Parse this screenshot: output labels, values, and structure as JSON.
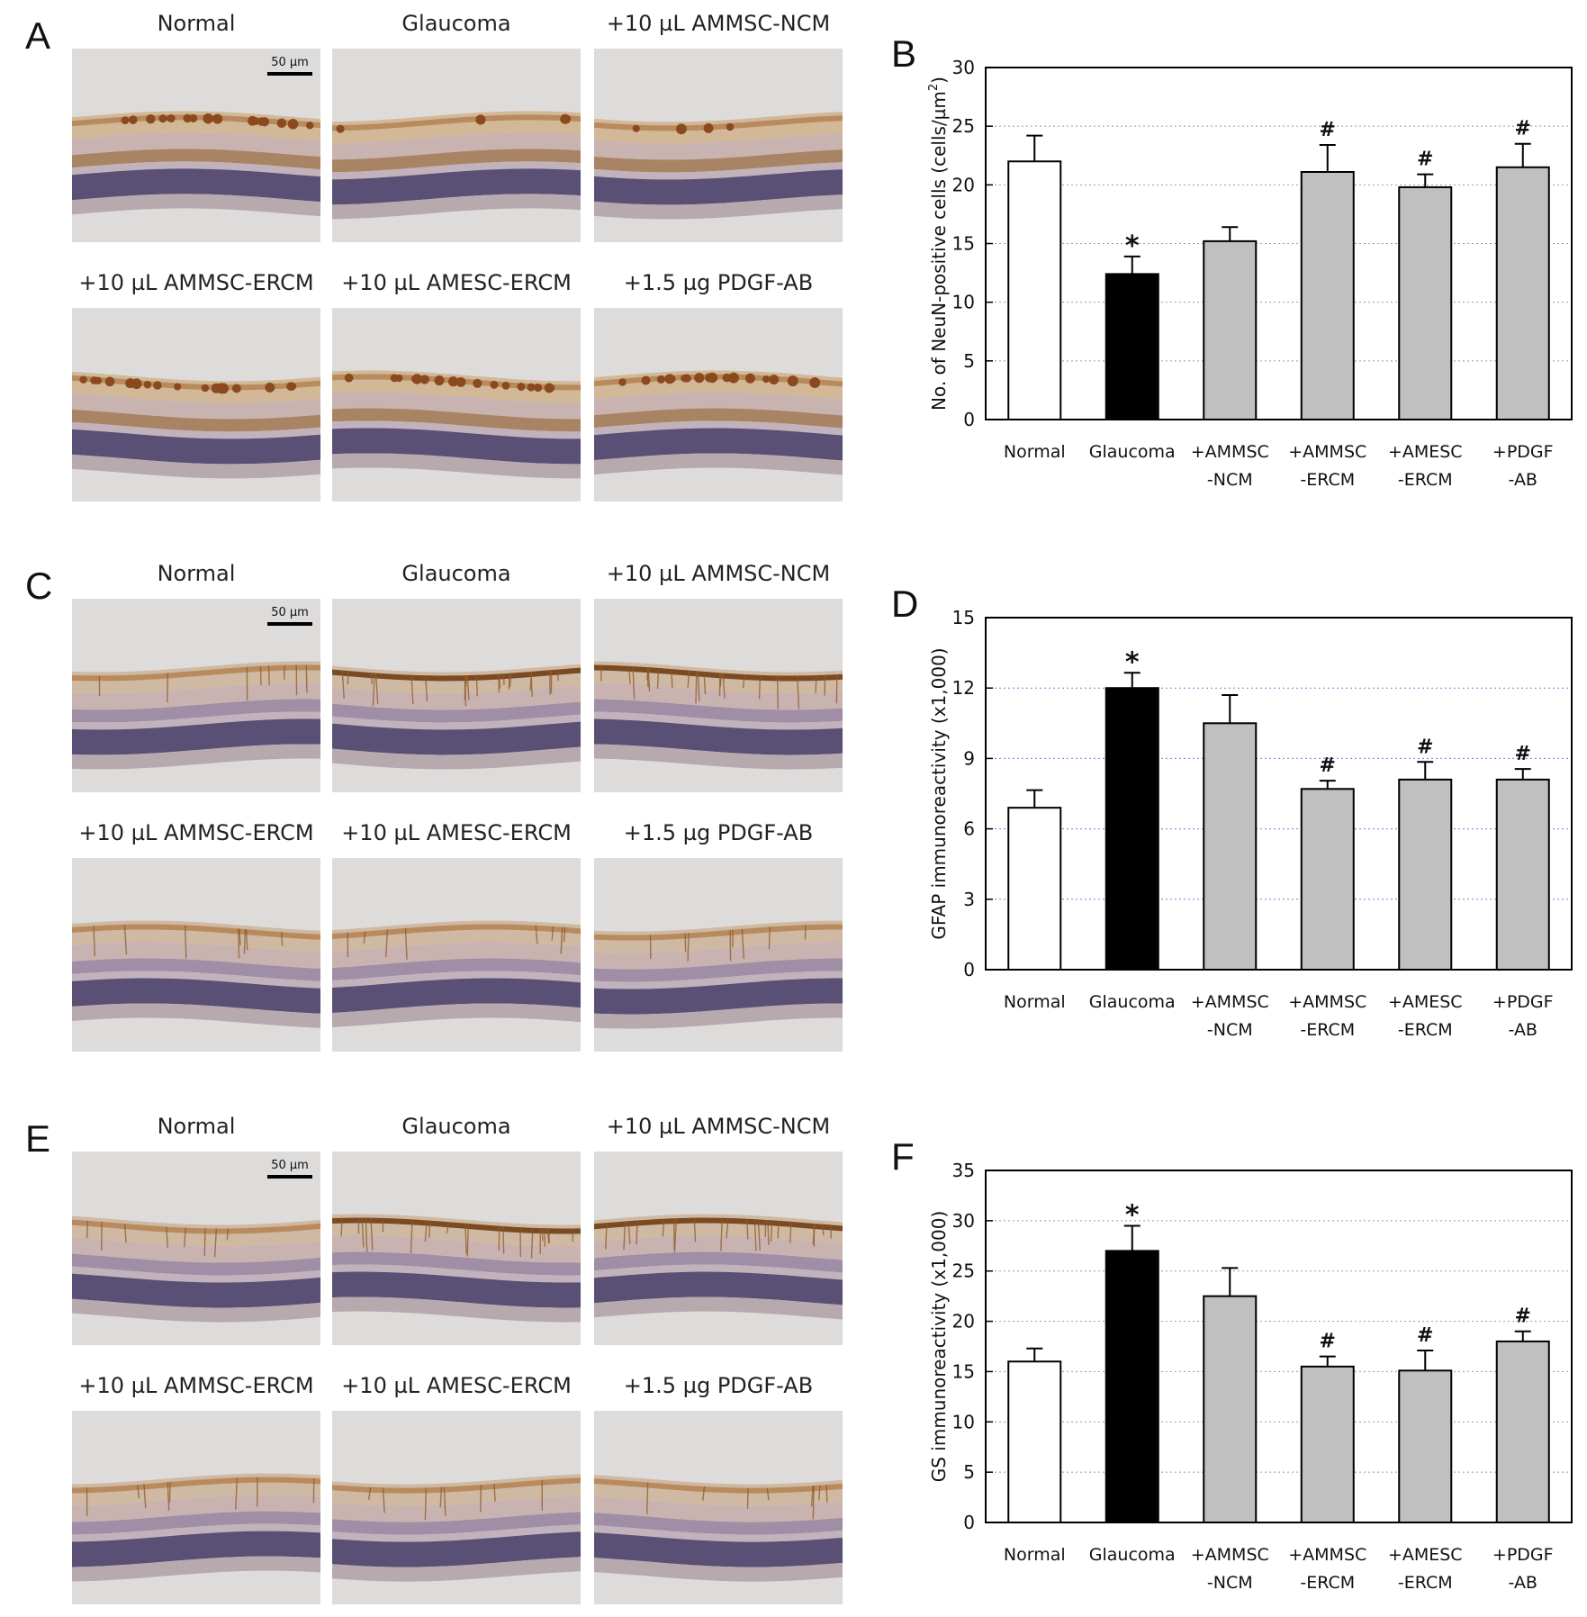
{
  "figure": {
    "sections": [
      {
        "micro_letter": "A",
        "chart_letter": "B",
        "stain": "neun",
        "captions": [
          "Normal",
          "Glaucoma",
          "+10 µL AMMSC-NCM",
          "+10 µL AMMSC-ERCM",
          "+10 µL AMESC-ERCM",
          "+1.5 µg PDGF-AB"
        ],
        "scale_bar": "50 µm"
      },
      {
        "micro_letter": "C",
        "chart_letter": "D",
        "stain": "gfap",
        "captions": [
          "Normal",
          "Glaucoma",
          "+10 µL AMMSC-NCM",
          "+10 µL AMMSC-ERCM",
          "+10 µL AMESC-ERCM",
          "+1.5 µg PDGF-AB"
        ],
        "scale_bar": "50 µm"
      },
      {
        "micro_letter": "E",
        "chart_letter": "F",
        "stain": "gs",
        "captions": [
          "Normal",
          "Glaucoma",
          "+10 µL AMMSC-NCM",
          "+10 µL AMMSC-ERCM",
          "+10 µL AMESC-ERCM",
          "+1.5 µg PDGF-AB"
        ],
        "scale_bar": "50 µm"
      }
    ]
  },
  "chart_data": [
    {
      "type": "bar",
      "panel": "B",
      "title": "",
      "xlabel": "",
      "ylabel": "No. of NeuN-positive cells (cells/µm",
      "ylabel_sup": "2",
      "ylabel_end": ")",
      "categories": [
        [
          "Normal"
        ],
        [
          "Glaucoma"
        ],
        [
          "+AMMSC",
          "-NCM"
        ],
        [
          "+AMMSC",
          "-ERCM"
        ],
        [
          "+AMESC",
          "-ERCM"
        ],
        [
          "+PDGF",
          "-AB"
        ]
      ],
      "values": [
        22,
        12.4,
        15.2,
        21.1,
        19.8,
        21.5
      ],
      "errors": [
        2.2,
        1.5,
        1.2,
        2.3,
        1.1,
        2.0
      ],
      "annotations": [
        "",
        "*",
        "",
        "#",
        "#",
        "#"
      ],
      "bar_fills": [
        "#ffffff",
        "#000000",
        "#c0c0c0",
        "#c0c0c0",
        "#c0c0c0",
        "#c0c0c0"
      ],
      "ylim": [
        0,
        30
      ],
      "yticks": [
        0,
        5,
        10,
        15,
        20,
        25,
        30
      ],
      "grid_color": "#999999"
    },
    {
      "type": "bar",
      "panel": "D",
      "title": "",
      "xlabel": "",
      "ylabel": "GFAP immunoreactivity (x1,000)",
      "ylabel_sup": "",
      "ylabel_end": "",
      "categories": [
        [
          "Normal"
        ],
        [
          "Glaucoma"
        ],
        [
          "+AMMSC",
          "-NCM"
        ],
        [
          "+AMMSC",
          "-ERCM"
        ],
        [
          "+AMESC",
          "-ERCM"
        ],
        [
          "+PDGF",
          "-AB"
        ]
      ],
      "values": [
        6.9,
        12.0,
        10.5,
        7.7,
        8.1,
        8.1
      ],
      "errors": [
        0.75,
        0.65,
        1.2,
        0.35,
        0.75,
        0.45
      ],
      "annotations": [
        "",
        "*",
        "",
        "#",
        "#",
        "#"
      ],
      "bar_fills": [
        "#ffffff",
        "#000000",
        "#c0c0c0",
        "#c0c0c0",
        "#c0c0c0",
        "#c0c0c0"
      ],
      "ylim": [
        0,
        15
      ],
      "yticks": [
        0,
        3,
        6,
        9,
        12,
        15
      ],
      "grid_color": "#7b7bd9"
    },
    {
      "type": "bar",
      "panel": "F",
      "title": "",
      "xlabel": "",
      "ylabel": "GS immunoreactivity (x1,000)",
      "ylabel_sup": "",
      "ylabel_end": "",
      "categories": [
        [
          "Normal"
        ],
        [
          "Glaucoma"
        ],
        [
          "+AMMSC",
          "-NCM"
        ],
        [
          "+AMMSC",
          "-ERCM"
        ],
        [
          "+AMESC",
          "-ERCM"
        ],
        [
          "+PDGF",
          "-AB"
        ]
      ],
      "values": [
        16,
        27,
        22.5,
        15.5,
        15.1,
        18
      ],
      "errors": [
        1.3,
        2.5,
        2.8,
        1.0,
        2.0,
        1.0
      ],
      "annotations": [
        "",
        "*",
        "",
        "#",
        "#",
        "#"
      ],
      "bar_fills": [
        "#ffffff",
        "#000000",
        "#c0c0c0",
        "#c0c0c0",
        "#c0c0c0",
        "#c0c0c0"
      ],
      "ylim": [
        0,
        35
      ],
      "yticks": [
        0,
        5,
        10,
        15,
        20,
        25,
        30,
        35
      ],
      "grid_color": "#999999"
    }
  ]
}
